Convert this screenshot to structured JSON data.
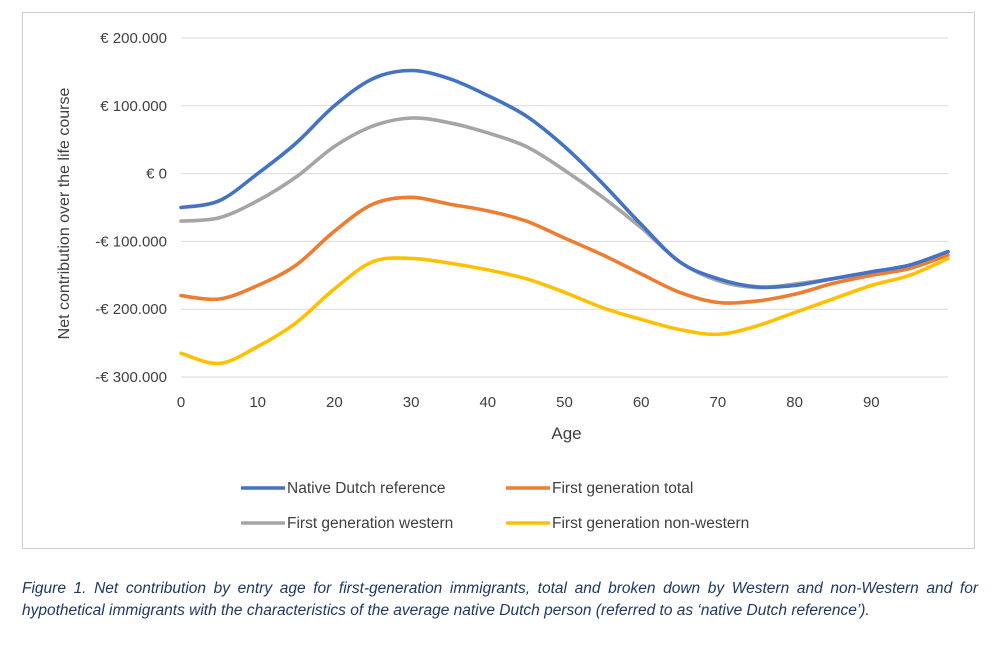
{
  "chart_data": {
    "type": "line",
    "xlabel": "Age",
    "ylabel": "Net contribution over the life course",
    "xlim": [
      0,
      100
    ],
    "ylim": [
      -300000,
      200000
    ],
    "x_ticks": [
      0,
      10,
      20,
      30,
      40,
      50,
      60,
      70,
      80,
      90
    ],
    "y_ticks": [
      200000,
      100000,
      0,
      -100000,
      -200000,
      -300000
    ],
    "y_tick_labels": [
      "€ 200.000",
      "€ 100.000",
      "€ 0",
      "-€ 100.000",
      "-€ 200.000",
      "-€ 300.000"
    ],
    "grid": "horizontal",
    "legend_position": "bottom",
    "x": [
      0,
      5,
      10,
      15,
      20,
      25,
      30,
      35,
      40,
      45,
      50,
      55,
      60,
      65,
      70,
      75,
      80,
      85,
      90,
      95,
      100
    ],
    "series": [
      {
        "name": "Native Dutch reference",
        "color": "#4472c4",
        "values": [
          -50000,
          -40000,
          0,
          45000,
          100000,
          140000,
          152000,
          140000,
          115000,
          85000,
          40000,
          -15000,
          -75000,
          -130000,
          -155000,
          -167000,
          -165000,
          -155000,
          -145000,
          -135000,
          -115000
        ]
      },
      {
        "name": "First generation total",
        "color": "#ed7d31",
        "values": [
          -180000,
          -185000,
          -165000,
          -135000,
          -85000,
          -45000,
          -35000,
          -45000,
          -55000,
          -70000,
          -95000,
          -120000,
          -148000,
          -175000,
          -190000,
          -188000,
          -178000,
          -162000,
          -150000,
          -140000,
          -120000
        ]
      },
      {
        "name": "First generation western",
        "color": "#a5a5a5",
        "values": [
          -70000,
          -65000,
          -40000,
          -5000,
          40000,
          70000,
          82000,
          75000,
          60000,
          40000,
          5000,
          -35000,
          -80000,
          -130000,
          -158000,
          -168000,
          -163000,
          -155000,
          -145000,
          -135000,
          -115000
        ]
      },
      {
        "name": "First generation non-western",
        "color": "#ffc000",
        "values": [
          -265000,
          -280000,
          -255000,
          -220000,
          -170000,
          -130000,
          -125000,
          -132000,
          -142000,
          -155000,
          -175000,
          -198000,
          -215000,
          -230000,
          -237000,
          -225000,
          -205000,
          -185000,
          -165000,
          -150000,
          -125000
        ]
      }
    ]
  },
  "caption": "Figure 1. Net contribution by entry age for first-generation immigrants, total and broken down by Western and non-Western and for hypothetical immigrants with the characteristics of the average native Dutch person (referred to as ‘native Dutch reference’)."
}
